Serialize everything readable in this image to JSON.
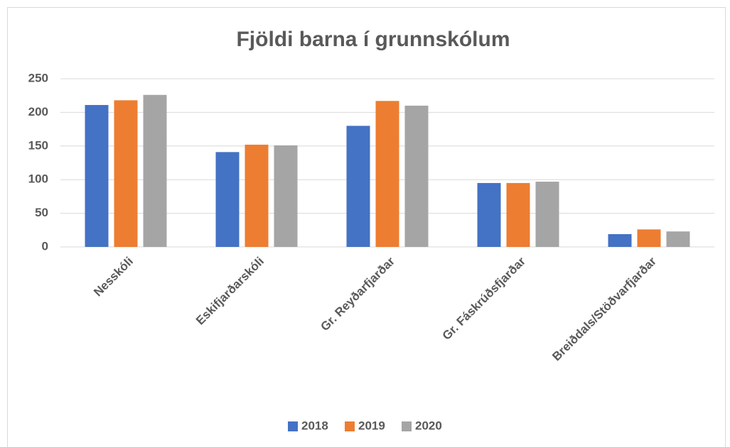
{
  "chart_data": {
    "type": "bar",
    "title": "Fjöldi barna í grunnskólum",
    "categories": [
      "Nesskóli",
      "Eskifjarðarskóli",
      "Gr. Reyðarfjarðar",
      "Gr. Fáskrúðsfjarðar",
      "Breiðdals/Stöðvarfjarðar"
    ],
    "series": [
      {
        "name": "2018",
        "color": "#4472c4",
        "values": [
          211,
          141,
          180,
          95,
          19
        ]
      },
      {
        "name": "2019",
        "color": "#ed7d31",
        "values": [
          218,
          152,
          217,
          95,
          26
        ]
      },
      {
        "name": "2020",
        "color": "#a5a5a5",
        "values": [
          226,
          151,
          210,
          97,
          23
        ]
      }
    ],
    "ylim": [
      0,
      250
    ],
    "yticks": [
      0,
      50,
      100,
      150,
      200,
      250
    ],
    "grid": true,
    "legend": "bottom"
  }
}
